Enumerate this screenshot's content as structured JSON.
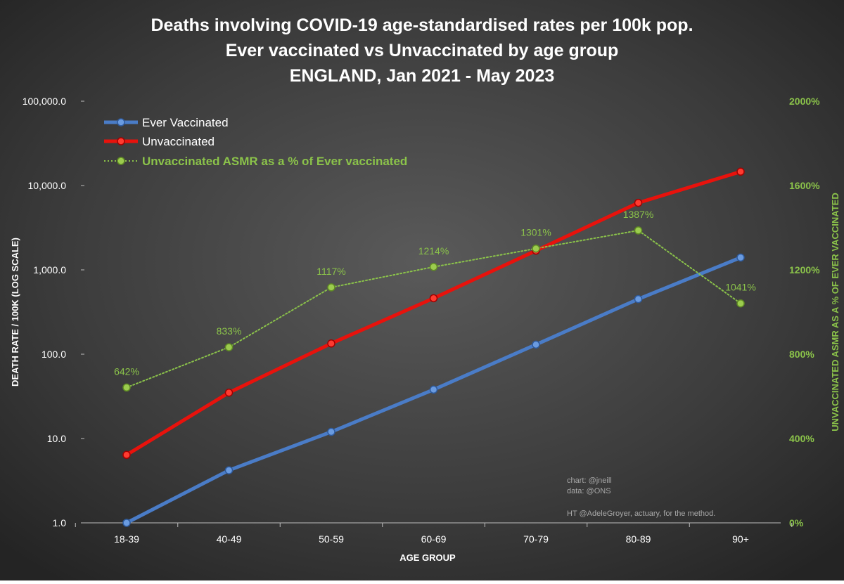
{
  "chart_data": {
    "type": "line",
    "title_lines": [
      "Deaths involving COVID-19 age-standardised rates per 100k pop.",
      "Ever vaccinated vs Unvaccinated by age group",
      "ENGLAND, Jan 2021 - May 2023"
    ],
    "xlabel": "AGE GROUP",
    "ylabel": "DEATH RATE / 100K (LOG SCALE)",
    "y2label": "UNVACCINATED ASMR AS A % OF EVER VACCINATED",
    "categories": [
      "18-39",
      "40-49",
      "50-59",
      "60-69",
      "70-79",
      "80-89",
      "90+"
    ],
    "y_scale": "log",
    "ylim": [
      1,
      100000
    ],
    "y_ticks": [
      1,
      10,
      100,
      1000,
      10000,
      100000
    ],
    "y_tick_labels": [
      "1.0",
      "10.0",
      "100.0",
      "1,000.0",
      "10,000.0",
      "100,000.0"
    ],
    "y2lim": [
      0,
      2000
    ],
    "y2_ticks": [
      0,
      400,
      800,
      1200,
      1600,
      2000
    ],
    "y2_tick_labels": [
      "0%",
      "400%",
      "800%",
      "1200%",
      "1600%",
      "2000%"
    ],
    "series": [
      {
        "name": "Ever Vaccinated",
        "axis": "left",
        "color": "#4a7cc7",
        "values": [
          1.0,
          4.2,
          12.0,
          38.0,
          130.0,
          450.0,
          1400.0
        ]
      },
      {
        "name": "Unvaccinated",
        "axis": "left",
        "color": "#e8120c",
        "values": [
          6.4,
          35.0,
          134.0,
          461.0,
          1690.0,
          6240.0,
          14600.0
        ]
      },
      {
        "name": "Unvaccinated ASMR as a % of Ever vaccinated",
        "axis": "right",
        "color": "#8bc34a",
        "style": "dotted",
        "values": [
          642,
          833,
          1117,
          1214,
          1301,
          1387,
          1041
        ],
        "data_labels": [
          "642%",
          "833%",
          "1117%",
          "1214%",
          "1301%",
          "1387%",
          "1041%"
        ]
      }
    ],
    "legend_position": "top-left",
    "grid": false,
    "annotations": [
      "chart: @jneill",
      "data: @ONS",
      "HT @AdeleGroyer, actuary, for the method."
    ]
  }
}
